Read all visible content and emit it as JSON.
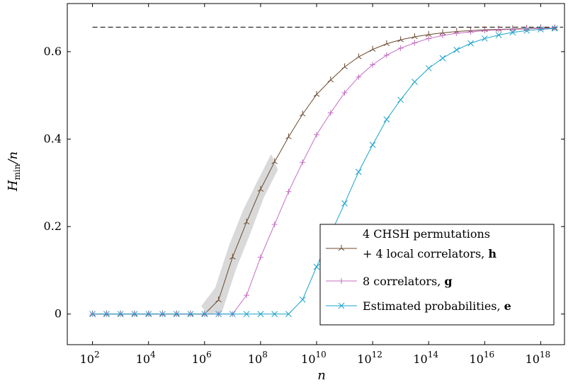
{
  "chart_data": {
    "type": "line",
    "xlabel": "n",
    "ylabel": "Hmin/n",
    "x_scale": "log10",
    "xlim_exp": [
      1.1,
      18.85
    ],
    "ylim": [
      -0.07,
      0.71
    ],
    "x_ticks": [
      {
        "base": "10",
        "exp": "2",
        "value": 2
      },
      {
        "base": "10",
        "exp": "4",
        "value": 4
      },
      {
        "base": "10",
        "exp": "6",
        "value": 6
      },
      {
        "base": "10",
        "exp": "8",
        "value": 8
      },
      {
        "base": "10",
        "exp": "10",
        "value": 10
      },
      {
        "base": "10",
        "exp": "12",
        "value": 12
      },
      {
        "base": "10",
        "exp": "14",
        "value": 14
      },
      {
        "base": "10",
        "exp": "16",
        "value": 16
      },
      {
        "base": "10",
        "exp": "18",
        "value": 18
      }
    ],
    "y_ticks": [
      {
        "label": "0",
        "value": 0
      },
      {
        "label": "0.2",
        "value": 0.2
      },
      {
        "label": "0.4",
        "value": 0.4
      },
      {
        "label": "0.6",
        "value": 0.6
      }
    ],
    "reference_line": {
      "y": 0.656,
      "style": "dashed",
      "color": "#000000"
    },
    "legend_position": "lower-right",
    "x_exponents": [
      2,
      2.5,
      3,
      3.5,
      4,
      4.5,
      5,
      5.5,
      6,
      6.5,
      7,
      7.5,
      8,
      8.5,
      9,
      9.5,
      10,
      10.5,
      11,
      11.5,
      12,
      12.5,
      13,
      13.5,
      14,
      14.5,
      15,
      15.5,
      16,
      16.5,
      17,
      17.5,
      18,
      18.5
    ],
    "series": [
      {
        "name_line1": "4 CHSH permutations",
        "name_line2": "+ 4 local correlators, ",
        "name_bold": "h",
        "color": "#6b4a2f",
        "marker": "tri",
        "values": [
          0,
          0,
          0,
          0,
          0,
          0,
          0,
          0,
          0,
          0.032,
          0.13,
          0.21,
          0.285,
          0.348,
          0.405,
          0.457,
          0.502,
          0.535,
          0.565,
          0.588,
          0.605,
          0.618,
          0.627,
          0.634,
          0.639,
          0.643,
          0.646,
          0.648,
          0.65,
          0.651,
          0.652,
          0.653,
          0.654,
          0.654
        ]
      },
      {
        "name": "8 correlators, ",
        "name_bold": "g",
        "color": "#c36ec3",
        "marker": "plus",
        "values": [
          0,
          0,
          0,
          0,
          0,
          0,
          0,
          0,
          0,
          0,
          0,
          0.043,
          0.13,
          0.205,
          0.28,
          0.347,
          0.41,
          0.46,
          0.506,
          0.542,
          0.57,
          0.592,
          0.608,
          0.62,
          0.63,
          0.637,
          0.642,
          0.645,
          0.648,
          0.65,
          0.651,
          0.652,
          0.653,
          0.654
        ]
      },
      {
        "name": "Estimated probabilities, ",
        "name_bold": "e",
        "color": "#1aa3c9",
        "marker": "x",
        "values": [
          0,
          0,
          0,
          0,
          0,
          0,
          0,
          0,
          0,
          0,
          0,
          0,
          0,
          0,
          0,
          0.033,
          0.108,
          0.183,
          0.253,
          0.325,
          0.387,
          0.445,
          0.49,
          0.531,
          0.562,
          0.585,
          0.604,
          0.619,
          0.63,
          0.638,
          0.644,
          0.648,
          0.651,
          0.653
        ]
      }
    ]
  }
}
